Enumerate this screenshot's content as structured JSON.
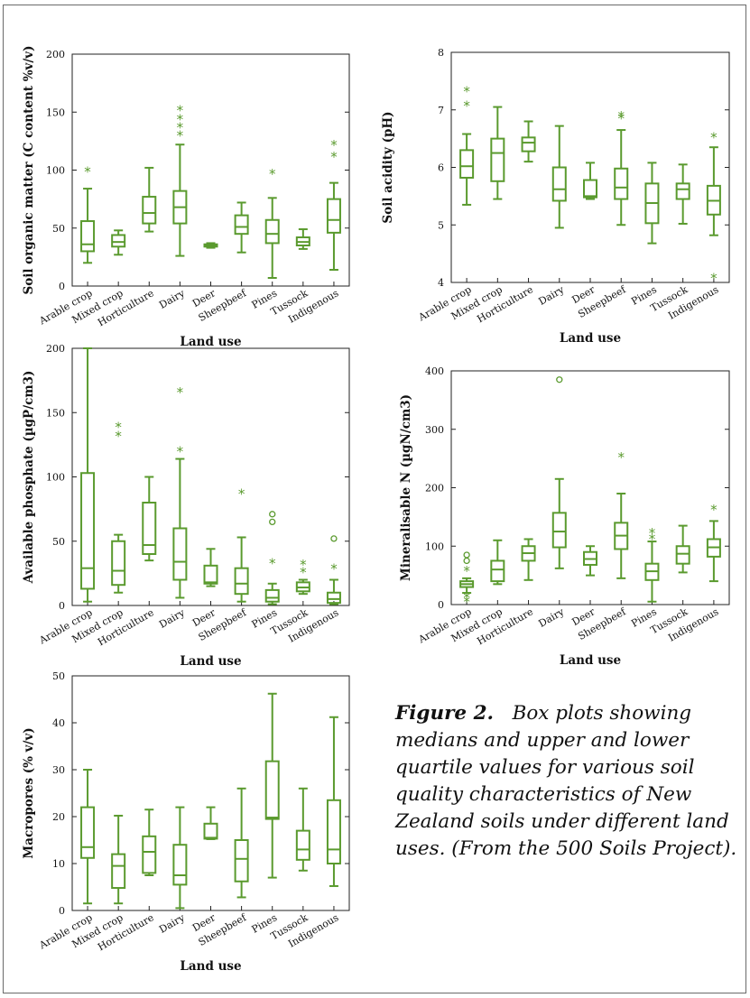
{
  "caption": {
    "label": "Figure 2.",
    "text": "Box plots showing medians and upper and lower quartile values for various soil quality characteristics of New Zealand soils under different land uses. (From the 500 Soils Project)."
  },
  "colors": {
    "boxes": "#5a9a2e",
    "axes": "#222222",
    "text": "#111111"
  },
  "chart_data": [
    {
      "type": "box",
      "id": "organic-matter",
      "title": "",
      "xlabel": "Land use",
      "ylabel": "Soil organic matter (C content %v/v)",
      "ylim": [
        0,
        200
      ],
      "yticks": [
        0,
        50,
        100,
        150,
        200
      ],
      "categories": [
        "Arable crop",
        "Mixed crop",
        "Horticulture",
        "Dairy",
        "Deer",
        "Sheepbeef",
        "Pines",
        "Tussock",
        "Indigenous"
      ],
      "boxes": [
        {
          "min": 20,
          "q1": 30,
          "median": 36,
          "q3": 56,
          "max": 84
        },
        {
          "min": 27,
          "q1": 34,
          "median": 38,
          "q3": 44,
          "max": 48
        },
        {
          "min": 47,
          "q1": 54,
          "median": 63,
          "q3": 77,
          "max": 102
        },
        {
          "min": 26,
          "q1": 54,
          "median": 68,
          "q3": 82,
          "max": 122
        },
        {
          "min": 33,
          "q1": 34,
          "median": 35,
          "q3": 36,
          "max": 37
        },
        {
          "min": 29,
          "q1": 45,
          "median": 51,
          "q3": 61,
          "max": 72
        },
        {
          "min": 7,
          "q1": 37,
          "median": 45,
          "q3": 57,
          "max": 76
        },
        {
          "min": 32,
          "q1": 35,
          "median": 38,
          "q3": 42,
          "max": 49
        },
        {
          "min": 14,
          "q1": 46,
          "median": 57,
          "q3": 75,
          "max": 89
        }
      ],
      "outliers": [
        {
          "cat": 0,
          "value": 100,
          "symbol": "*"
        },
        {
          "cat": 3,
          "value": 131,
          "symbol": "*"
        },
        {
          "cat": 3,
          "value": 138,
          "symbol": "*"
        },
        {
          "cat": 3,
          "value": 145,
          "symbol": "*"
        },
        {
          "cat": 3,
          "value": 153,
          "symbol": "*"
        },
        {
          "cat": 6,
          "value": 98,
          "symbol": "*"
        },
        {
          "cat": 8,
          "value": 113,
          "symbol": "*"
        },
        {
          "cat": 8,
          "value": 123,
          "symbol": "*"
        }
      ]
    },
    {
      "type": "box",
      "id": "soil-acidity",
      "title": "",
      "xlabel": "Land use",
      "ylabel": "Soil acidity (pH)",
      "ylim": [
        4,
        8
      ],
      "yticks": [
        4,
        5,
        6,
        7,
        8
      ],
      "categories": [
        "Arable crop",
        "Mixed crop",
        "Horticulture",
        "Dairy",
        "Deer",
        "Sheepbeef",
        "Pines",
        "Tussock",
        "Indigenous"
      ],
      "boxes": [
        {
          "min": 5.35,
          "q1": 5.82,
          "median": 6.02,
          "q3": 6.3,
          "max": 6.58
        },
        {
          "min": 5.45,
          "q1": 5.76,
          "median": 6.25,
          "q3": 6.5,
          "max": 7.05
        },
        {
          "min": 6.1,
          "q1": 6.28,
          "median": 6.43,
          "q3": 6.52,
          "max": 6.8
        },
        {
          "min": 4.95,
          "q1": 5.42,
          "median": 5.62,
          "q3": 6.0,
          "max": 6.72
        },
        {
          "min": 5.45,
          "q1": 5.48,
          "median": 5.5,
          "q3": 5.78,
          "max": 6.08
        },
        {
          "min": 5.0,
          "q1": 5.45,
          "median": 5.65,
          "q3": 5.98,
          "max": 6.65
        },
        {
          "min": 4.68,
          "q1": 5.03,
          "median": 5.38,
          "q3": 5.72,
          "max": 6.08
        },
        {
          "min": 5.02,
          "q1": 5.45,
          "median": 5.62,
          "q3": 5.72,
          "max": 6.05
        },
        {
          "min": 4.82,
          "q1": 5.18,
          "median": 5.42,
          "q3": 5.68,
          "max": 6.35
        }
      ],
      "outliers": [
        {
          "cat": 0,
          "value": 7.35,
          "symbol": "*"
        },
        {
          "cat": 0,
          "value": 7.1,
          "symbol": "*"
        },
        {
          "cat": 5,
          "value": 6.88,
          "symbol": "*"
        },
        {
          "cat": 5,
          "value": 6.92,
          "symbol": "*"
        },
        {
          "cat": 8,
          "value": 6.55,
          "symbol": "*"
        },
        {
          "cat": 8,
          "value": 4.1,
          "symbol": "*"
        }
      ]
    },
    {
      "type": "box",
      "id": "available-phosphate",
      "title": "",
      "xlabel": "Land use",
      "ylabel": "Available phosphate (µgP/cm3)",
      "ylim": [
        0,
        200
      ],
      "yticks": [
        0,
        50,
        100,
        150,
        200
      ],
      "categories": [
        "Arable crop",
        "Mixed crop",
        "Horticulture",
        "Dairy",
        "Deer",
        "Sheepbeef",
        "Pines",
        "Tussock",
        "Indigenous"
      ],
      "boxes": [
        {
          "min": 3,
          "q1": 13,
          "median": 29,
          "q3": 103,
          "max": 200
        },
        {
          "min": 10,
          "q1": 16,
          "median": 27,
          "q3": 50,
          "max": 55
        },
        {
          "min": 35,
          "q1": 40,
          "median": 47,
          "q3": 80,
          "max": 100
        },
        {
          "min": 6,
          "q1": 20,
          "median": 34,
          "q3": 60,
          "max": 114
        },
        {
          "min": 15,
          "q1": 17,
          "median": 18,
          "q3": 31,
          "max": 44
        },
        {
          "min": 3,
          "q1": 9,
          "median": 17,
          "q3": 29,
          "max": 53
        },
        {
          "min": 1,
          "q1": 3,
          "median": 6,
          "q3": 12,
          "max": 17
        },
        {
          "min": 9,
          "q1": 11,
          "median": 14,
          "q3": 18,
          "max": 20
        },
        {
          "min": 1,
          "q1": 2,
          "median": 5,
          "q3": 10,
          "max": 20
        }
      ],
      "outliers": [
        {
          "cat": 1,
          "value": 133,
          "symbol": "*"
        },
        {
          "cat": 1,
          "value": 140,
          "symbol": "*"
        },
        {
          "cat": 3,
          "value": 167,
          "symbol": "*"
        },
        {
          "cat": 3,
          "value": 121,
          "symbol": "*"
        },
        {
          "cat": 5,
          "value": 88,
          "symbol": "*"
        },
        {
          "cat": 6,
          "value": 71,
          "symbol": "o"
        },
        {
          "cat": 6,
          "value": 65,
          "symbol": "o"
        },
        {
          "cat": 6,
          "value": 34,
          "symbol": "*"
        },
        {
          "cat": 7,
          "value": 27,
          "symbol": "*"
        },
        {
          "cat": 7,
          "value": 33,
          "symbol": "*"
        },
        {
          "cat": 8,
          "value": 52,
          "symbol": "o"
        },
        {
          "cat": 8,
          "value": 30,
          "symbol": "*"
        }
      ]
    },
    {
      "type": "box",
      "id": "mineralisable-n",
      "title": "",
      "xlabel": "Land use",
      "ylabel": "Mineralisable N (µgN/cm3)",
      "ylim": [
        0,
        400
      ],
      "yticks": [
        0,
        100,
        200,
        300,
        400
      ],
      "categories": [
        "Arable crop",
        "Mixed crop",
        "Horticulture",
        "Dairy",
        "Deer",
        "Sheepbeef",
        "Pines",
        "Tussock",
        "Indigenous"
      ],
      "boxes": [
        {
          "min": 20,
          "q1": 30,
          "median": 35,
          "q3": 40,
          "max": 45
        },
        {
          "min": 35,
          "q1": 40,
          "median": 60,
          "q3": 75,
          "max": 110
        },
        {
          "min": 42,
          "q1": 75,
          "median": 88,
          "q3": 100,
          "max": 112
        },
        {
          "min": 62,
          "q1": 98,
          "median": 125,
          "q3": 157,
          "max": 215
        },
        {
          "min": 50,
          "q1": 68,
          "median": 78,
          "q3": 90,
          "max": 100
        },
        {
          "min": 45,
          "q1": 95,
          "median": 118,
          "q3": 140,
          "max": 190
        },
        {
          "min": 5,
          "q1": 42,
          "median": 57,
          "q3": 70,
          "max": 108
        },
        {
          "min": 55,
          "q1": 70,
          "median": 87,
          "q3": 100,
          "max": 135
        },
        {
          "min": 40,
          "q1": 82,
          "median": 98,
          "q3": 112,
          "max": 143
        }
      ],
      "outliers": [
        {
          "cat": 0,
          "value": 85,
          "symbol": "o"
        },
        {
          "cat": 0,
          "value": 75,
          "symbol": "o"
        },
        {
          "cat": 0,
          "value": 60,
          "symbol": "*"
        },
        {
          "cat": 0,
          "value": 15,
          "symbol": "*"
        },
        {
          "cat": 0,
          "value": 8,
          "symbol": "*"
        },
        {
          "cat": 3,
          "value": 385,
          "symbol": "o"
        },
        {
          "cat": 5,
          "value": 255,
          "symbol": "*"
        },
        {
          "cat": 6,
          "value": 125,
          "symbol": "*"
        },
        {
          "cat": 6,
          "value": 115,
          "symbol": "*"
        },
        {
          "cat": 8,
          "value": 165,
          "symbol": "*"
        }
      ]
    },
    {
      "type": "box",
      "id": "macropores",
      "title": "",
      "xlabel": "Land use",
      "ylabel": "Macropores (% v/v)",
      "ylim": [
        0,
        50
      ],
      "yticks": [
        0,
        10,
        20,
        30,
        40,
        50
      ],
      "categories": [
        "Arable crop",
        "Mixed crop",
        "Horticulture",
        "Dairy",
        "Deer",
        "Sheepbeef",
        "Pines",
        "Tussock",
        "Indigenous"
      ],
      "boxes": [
        {
          "min": 1.5,
          "q1": 11.2,
          "median": 13.5,
          "q3": 22,
          "max": 30
        },
        {
          "min": 1.5,
          "q1": 4.8,
          "median": 9.5,
          "q3": 12,
          "max": 20.2
        },
        {
          "min": 7.5,
          "q1": 8,
          "median": 12.5,
          "q3": 15.8,
          "max": 21.5
        },
        {
          "min": 0.5,
          "q1": 5.5,
          "median": 7.5,
          "q3": 14,
          "max": 22
        },
        {
          "min": 15.2,
          "q1": 15.3,
          "median": 15.5,
          "q3": 18.5,
          "max": 22
        },
        {
          "min": 2.8,
          "q1": 6.2,
          "median": 11,
          "q3": 15,
          "max": 26
        },
        {
          "min": 7,
          "q1": 19.5,
          "median": 19.8,
          "q3": 31.8,
          "max": 46.2
        },
        {
          "min": 8.5,
          "q1": 10.8,
          "median": 13,
          "q3": 17,
          "max": 26
        },
        {
          "min": 5.2,
          "q1": 10,
          "median": 13,
          "q3": 23.5,
          "max": 41.2
        }
      ],
      "outliers": []
    }
  ]
}
